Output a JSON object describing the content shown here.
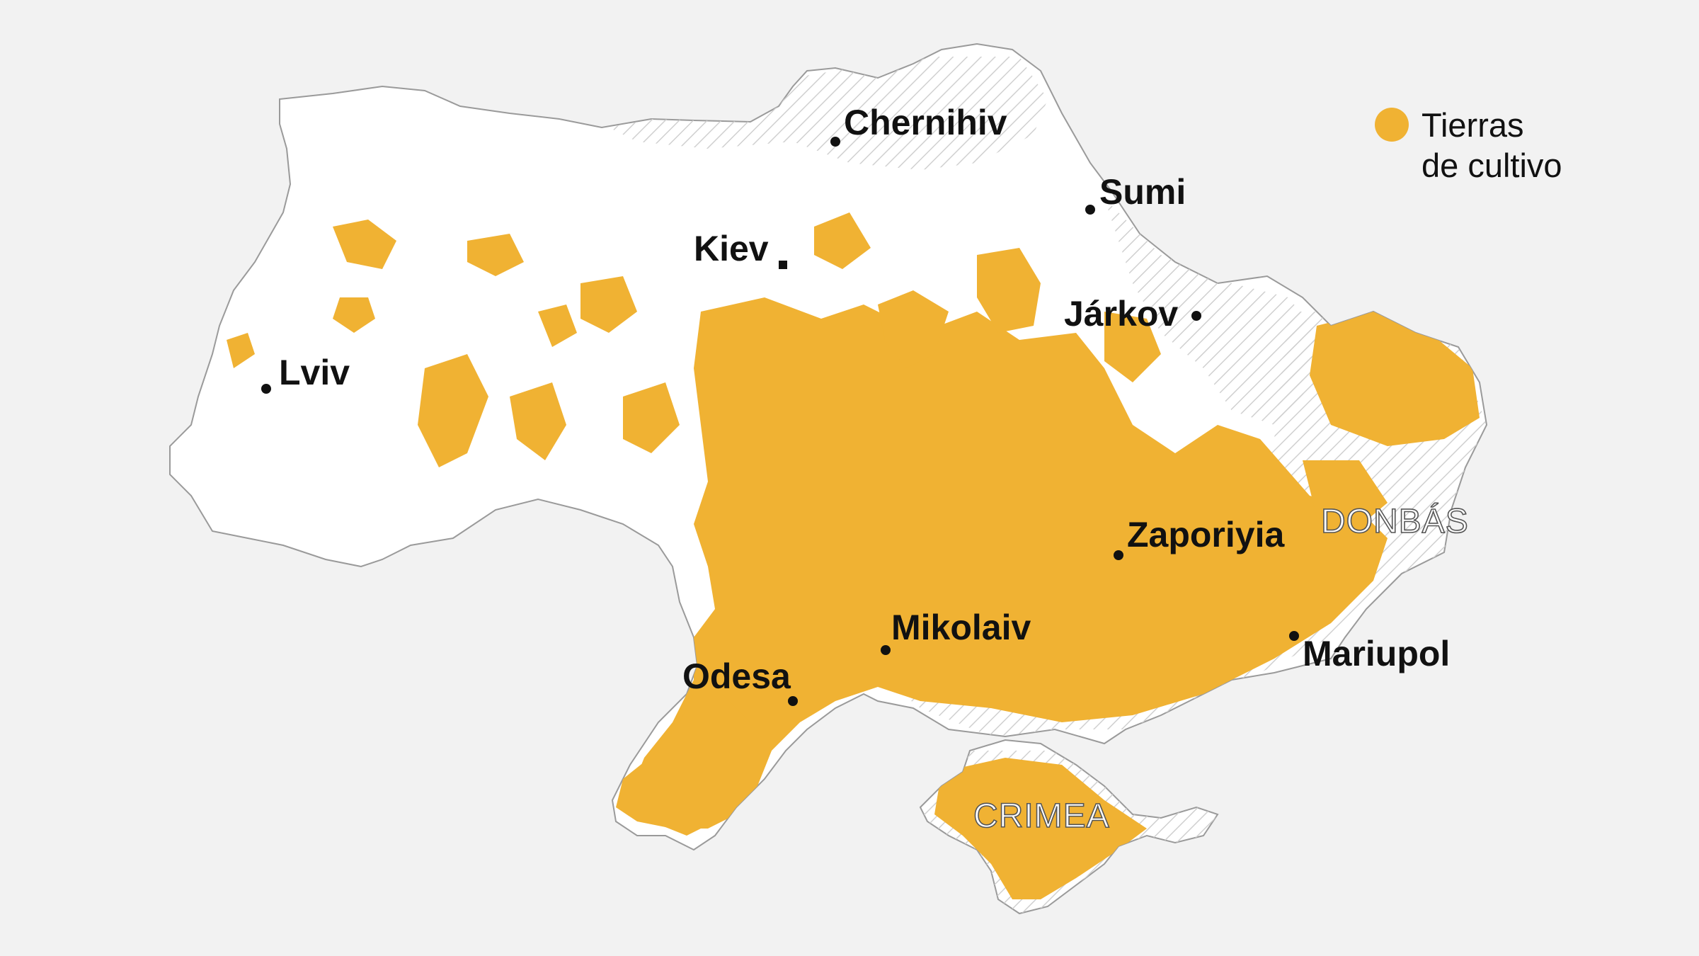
{
  "map": {
    "background_color": "#f2f2f2",
    "land_color": "#ffffff",
    "border_color": "#9a9a9a",
    "cropland_color": "#f0b233",
    "hatch_color": "#cfcfcf",
    "legend": {
      "label_line1": "Tierras",
      "label_line2": "de cultivo",
      "swatch_color": "#f0b233"
    },
    "cities": {
      "kiev": "Kiev",
      "chernihiv": "Chernihiv",
      "sumi": "Sumi",
      "jarkov": "Járkov",
      "lviv": "Lviv",
      "zaporiyia": "Zaporiyia",
      "mikolaiv": "Mikolaiv",
      "odesa": "Odesa",
      "mariupol": "Mariupol"
    },
    "regions": {
      "donbas": "DONBÁS",
      "crimea": "CRIMEA"
    }
  }
}
